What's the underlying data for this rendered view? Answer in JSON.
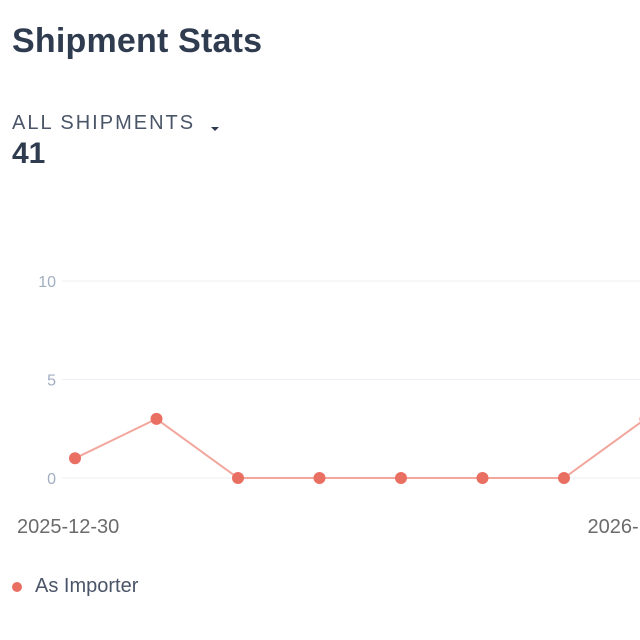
{
  "header": {
    "title": "Shipment Stats"
  },
  "stat": {
    "label": "ALL SHIPMENTS",
    "value": "41"
  },
  "chart_data": {
    "type": "line",
    "title": "",
    "xlabel": "",
    "ylabel": "",
    "ylim": [
      0,
      10
    ],
    "yticks": [
      "0",
      "5",
      "10"
    ],
    "x_labels": [
      "2025-12-30",
      "2026-"
    ],
    "series": [
      {
        "name": "As Importer",
        "color": "#ea6f63",
        "values": [
          1,
          3,
          0,
          0,
          0,
          0,
          0,
          3
        ]
      }
    ],
    "grid": true,
    "legend": "bottom-left"
  },
  "legend": {
    "items": [
      {
        "label": "As Importer",
        "color": "#ea6f63"
      }
    ]
  }
}
